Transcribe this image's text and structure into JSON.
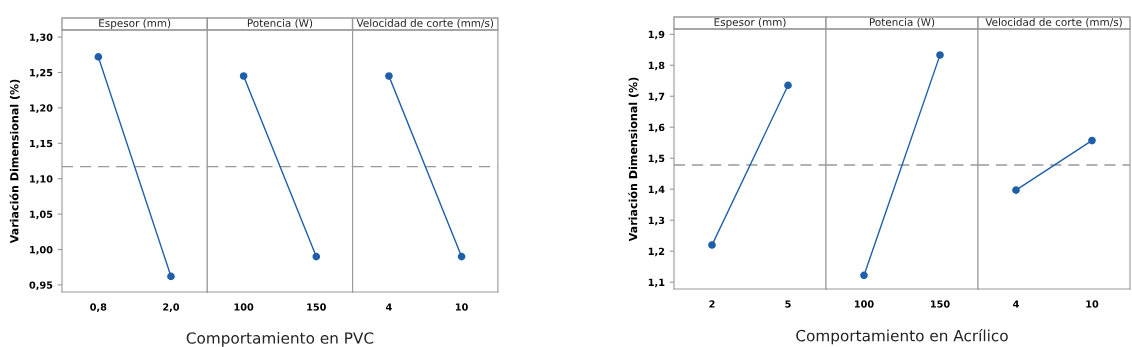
{
  "chart_data": [
    {
      "type": "line",
      "title": "Espesor (mm)",
      "ylabel": "Variación Dimensional (%)",
      "categories": [
        "0,8",
        "2,0"
      ],
      "values": [
        1.272,
        0.962
      ],
      "color": "#1f5fa8",
      "marker": "circle",
      "ylim": [
        0.94,
        1.31
      ],
      "yticks": [
        {
          "value": 0.95,
          "label": "0,95"
        },
        {
          "value": 1.0,
          "label": "1,00"
        },
        {
          "value": 1.05,
          "label": "1,05"
        },
        {
          "value": 1.1,
          "label": "1,10"
        },
        {
          "value": 1.15,
          "label": "1,15"
        },
        {
          "value": 1.2,
          "label": "1,20"
        },
        {
          "value": 1.25,
          "label": "1,25"
        },
        {
          "value": 1.3,
          "label": "1,30"
        }
      ],
      "ref_lines": [
        {
          "axis": "y",
          "value": 1.117,
          "color": "#999999",
          "line_style": "dashed"
        }
      ]
    },
    {
      "type": "line",
      "title": "Potencia (W)",
      "xlabel": "Comportamiento en PVC",
      "categories": [
        "100",
        "150"
      ],
      "values": [
        1.245,
        0.99
      ],
      "color": "#1f5fa8",
      "marker": "circle",
      "ylim": [
        0.94,
        1.31
      ],
      "tick_labels": "x",
      "ref_lines": [
        {
          "axis": "y",
          "value": 1.117,
          "color": "#999999",
          "line_style": "dashed"
        }
      ]
    },
    {
      "type": "line",
      "title": "Velocidad de corte (mm/s)",
      "categories": [
        "4",
        "10"
      ],
      "values": [
        1.245,
        0.99
      ],
      "color": "#1f5fa8",
      "marker": "circle",
      "ylim": [
        0.94,
        1.31
      ],
      "tick_labels": "x",
      "ref_lines": [
        {
          "axis": "y",
          "value": 1.117,
          "color": "#999999",
          "line_style": "dashed"
        }
      ]
    },
    {
      "type": "line",
      "title": "Espesor (mm)",
      "ylabel": "Variación Dimensional (%)",
      "categories": [
        "2",
        "5"
      ],
      "values": [
        1.22,
        1.735
      ],
      "color": "#1f5fa8",
      "marker": "circle",
      "ylim": [
        1.078,
        1.917
      ],
      "yticks": [
        {
          "value": 1.1,
          "label": "1,1"
        },
        {
          "value": 1.2,
          "label": "1,2"
        },
        {
          "value": 1.3,
          "label": "1,3"
        },
        {
          "value": 1.4,
          "label": "1,4"
        },
        {
          "value": 1.5,
          "label": "1,5"
        },
        {
          "value": 1.6,
          "label": "1,6"
        },
        {
          "value": 1.7,
          "label": "1,7"
        },
        {
          "value": 1.8,
          "label": "1,8"
        },
        {
          "value": 1.9,
          "label": "1,9"
        }
      ],
      "ref_lines": [
        {
          "axis": "y",
          "value": 1.478,
          "color": "#999999",
          "line_style": "dashed"
        }
      ]
    },
    {
      "type": "line",
      "title": "Potencia (W)",
      "xlabel": "Comportamiento en Acrílico",
      "categories": [
        "100",
        "150"
      ],
      "values": [
        1.122,
        1.833
      ],
      "color": "#1f5fa8",
      "marker": "circle",
      "ylim": [
        1.078,
        1.917
      ],
      "tick_labels": "x",
      "ref_lines": [
        {
          "axis": "y",
          "value": 1.478,
          "color": "#999999",
          "line_style": "dashed"
        }
      ]
    },
    {
      "type": "line",
      "title": "Velocidad de corte (mm/s)",
      "categories": [
        "4",
        "10"
      ],
      "values": [
        1.397,
        1.557
      ],
      "color": "#1f5fa8",
      "marker": "circle",
      "ylim": [
        1.078,
        1.917
      ],
      "tick_labels": "x",
      "ref_lines": [
        {
          "axis": "y",
          "value": 1.478,
          "color": "#999999",
          "line_style": "dashed"
        }
      ]
    }
  ]
}
